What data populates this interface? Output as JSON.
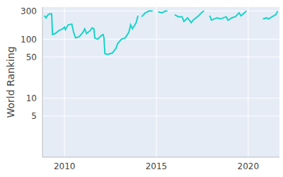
{
  "chart_data": {
    "type": "line",
    "y_label": "World Ranking",
    "log": "y",
    "grid": true,
    "color": "#17d4c8",
    "xlim": [
      2008.8,
      2021.7
    ],
    "xticks": [
      2010,
      2015,
      2020
    ],
    "ylim": [
      1,
      350
    ],
    "yticks": [
      5,
      10,
      50,
      100,
      300
    ],
    "x": [
      2008.9,
      2009.0,
      2009.1,
      2009.2,
      2009.3,
      2009.35,
      2009.5,
      2009.7,
      2009.9,
      2010.0,
      2010.05,
      2010.2,
      2010.4,
      2010.5,
      2010.6,
      2010.8,
      2011.0,
      2011.1,
      2011.2,
      2011.4,
      2011.5,
      2011.6,
      2011.65,
      2011.8,
      2012.0,
      2012.1,
      2012.15,
      2012.2,
      2012.3,
      2012.5,
      2012.6,
      2012.8,
      2012.9,
      2013.1,
      2013.3,
      2013.5,
      2013.6,
      2013.7,
      2013.9,
      2014.0,
      2014.1,
      2014.2,
      2014.4,
      2014.6,
      2014.8,
      2014.95,
      2015.1,
      2015.3,
      2015.5,
      2015.6,
      2015.8,
      2016.0,
      2016.2,
      2016.4,
      2016.5,
      2016.7,
      2016.9,
      2017.0,
      2017.3,
      2017.5,
      2017.6,
      2017.75,
      2017.9,
      2018.0,
      2018.3,
      2018.5,
      2018.8,
      2018.9,
      2019.1,
      2019.3,
      2019.5,
      2019.6,
      2019.8,
      2019.9,
      2020.3,
      2020.8,
      2021.0,
      2021.1,
      2021.3,
      2021.5,
      2021.6
    ],
    "values": [
      250,
      230,
      260,
      270,
      270,
      120,
      125,
      140,
      150,
      160,
      145,
      175,
      180,
      130,
      105,
      110,
      130,
      150,
      125,
      140,
      155,
      150,
      105,
      100,
      115,
      120,
      105,
      57,
      55,
      57,
      58,
      70,
      85,
      100,
      105,
      130,
      175,
      150,
      190,
      250,
      null,
      240,
      280,
      300,
      300,
      null,
      290,
      280,
      300,
      300,
      null,
      260,
      240,
      240,
      200,
      230,
      190,
      210,
      250,
      290,
      300,
      null,
      250,
      210,
      230,
      220,
      240,
      210,
      230,
      240,
      280,
      250,
      280,
      300,
      null,
      220,
      230,
      220,
      240,
      260,
      300
    ]
  }
}
